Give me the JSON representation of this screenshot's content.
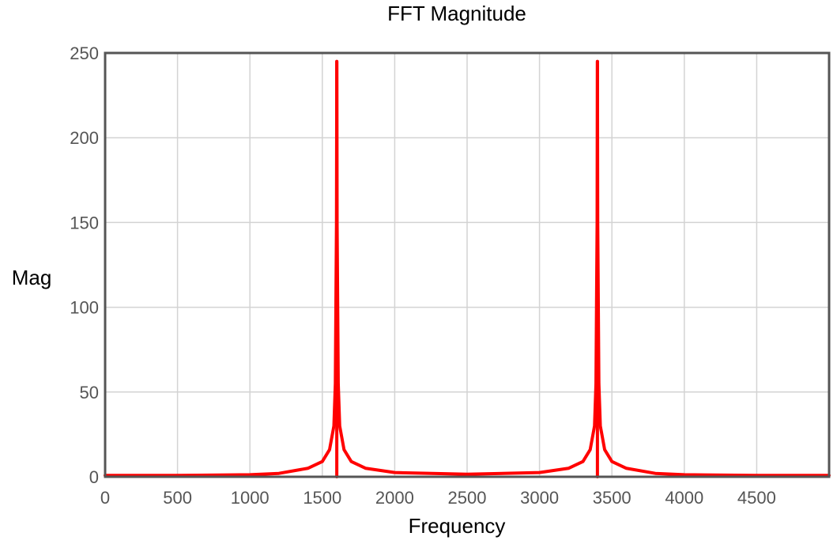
{
  "chart_data": {
    "type": "line",
    "title": "FFT Magnitude",
    "xlabel": "Frequency",
    "ylabel": "Mag",
    "xlim": [
      0,
      5000
    ],
    "ylim": [
      0,
      250
    ],
    "x_ticks": [
      0,
      500,
      1000,
      1500,
      2000,
      2500,
      3000,
      3500,
      4000,
      4500
    ],
    "y_ticks": [
      0,
      50,
      100,
      150,
      200,
      250
    ],
    "grid": true,
    "legend": "none",
    "colors": {
      "series": "#ff0000",
      "grid": "#d3d3d3",
      "frame": "#555555",
      "tick_text": "#555555"
    },
    "series": [
      {
        "peaks": [
          {
            "frequency": 1600,
            "magnitude": 245
          },
          {
            "frequency": 3400,
            "magnitude": 245
          }
        ],
        "points": [
          [
            0,
            0.8
          ],
          [
            500,
            0.8
          ],
          [
            1000,
            1.2
          ],
          [
            1200,
            2
          ],
          [
            1400,
            5
          ],
          [
            1500,
            9
          ],
          [
            1550,
            16
          ],
          [
            1580,
            30
          ],
          [
            1590,
            55
          ],
          [
            1598,
            150
          ],
          [
            1600,
            245
          ],
          [
            1602,
            150
          ],
          [
            1610,
            55
          ],
          [
            1620,
            30
          ],
          [
            1650,
            16
          ],
          [
            1700,
            9
          ],
          [
            1800,
            5
          ],
          [
            2000,
            2.5
          ],
          [
            2500,
            1.5
          ],
          [
            3000,
            2.5
          ],
          [
            3200,
            5
          ],
          [
            3300,
            9
          ],
          [
            3350,
            16
          ],
          [
            3380,
            30
          ],
          [
            3390,
            55
          ],
          [
            3398,
            150
          ],
          [
            3400,
            245
          ],
          [
            3402,
            150
          ],
          [
            3410,
            55
          ],
          [
            3420,
            30
          ],
          [
            3450,
            16
          ],
          [
            3500,
            9
          ],
          [
            3600,
            5
          ],
          [
            3800,
            2
          ],
          [
            4000,
            1.2
          ],
          [
            4500,
            0.8
          ],
          [
            5000,
            0.8
          ]
        ]
      }
    ]
  }
}
